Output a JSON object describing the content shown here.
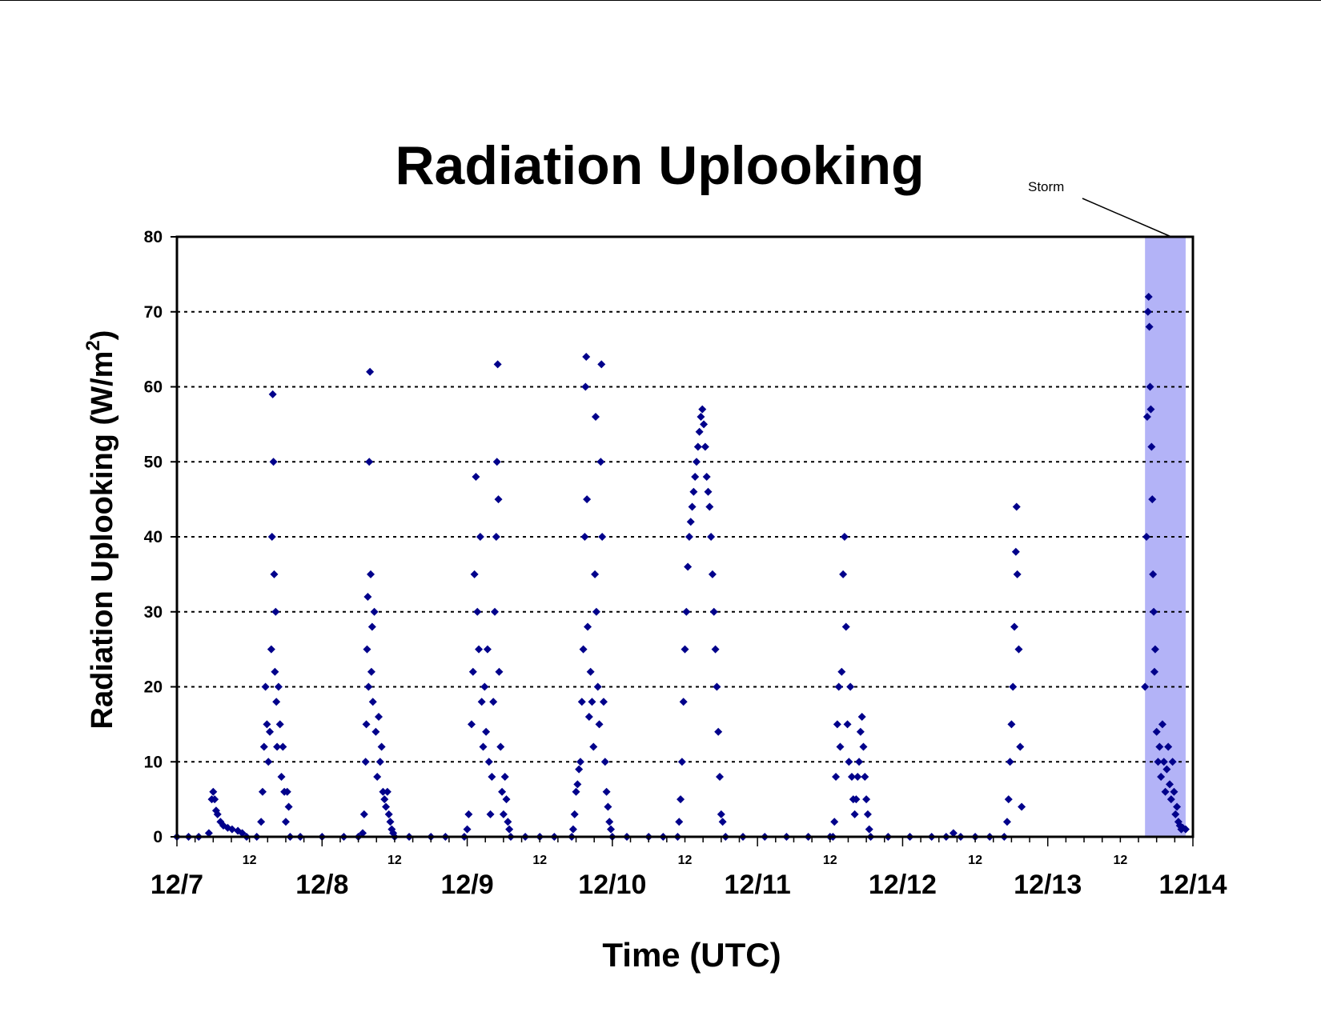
{
  "chart_data": {
    "type": "scatter",
    "title": "Radiation Uplooking",
    "xlabel": "Time (UTC)",
    "ylabel_main": "Radiation Uplooking (W/m",
    "ylabel_sup": "2",
    "ylabel_close": ")",
    "ylim": [
      0,
      80
    ],
    "yticks": [
      0,
      10,
      20,
      30,
      40,
      50,
      60,
      70,
      80
    ],
    "xlim_days": [
      0,
      7
    ],
    "x_major_labels": [
      "12/7",
      "12/8",
      "12/9",
      "12/10",
      "12/11",
      "12/12",
      "12/13",
      "12/14"
    ],
    "x_minor_label": "12",
    "grid": "horizontal dotted",
    "marker_color": "#00008B",
    "marker": "diamond",
    "annotation": {
      "label": "Storm",
      "x_start_day": 6.67,
      "x_end_day": 6.95,
      "fill": "#B3B3F7"
    },
    "series": [
      {
        "points": [
          [
            0.0,
            0
          ],
          [
            0.08,
            0
          ],
          [
            0.15,
            0
          ],
          [
            0.22,
            0.5
          ],
          [
            0.24,
            5
          ],
          [
            0.25,
            6
          ],
          [
            0.26,
            5
          ],
          [
            0.27,
            3.5
          ],
          [
            0.28,
            3
          ],
          [
            0.3,
            2
          ],
          [
            0.32,
            1.5
          ],
          [
            0.35,
            1.2
          ],
          [
            0.38,
            1
          ],
          [
            0.42,
            0.8
          ],
          [
            0.45,
            0.5
          ],
          [
            0.48,
            0
          ],
          [
            0.55,
            0
          ],
          [
            0.58,
            2
          ],
          [
            0.59,
            6
          ],
          [
            0.6,
            12
          ],
          [
            0.61,
            20
          ],
          [
            0.62,
            15
          ],
          [
            0.63,
            10
          ],
          [
            0.64,
            14
          ],
          [
            0.65,
            25
          ],
          [
            0.655,
            40
          ],
          [
            0.66,
            59
          ],
          [
            0.665,
            50
          ],
          [
            0.67,
            35
          ],
          [
            0.675,
            22
          ],
          [
            0.68,
            30
          ],
          [
            0.685,
            18
          ],
          [
            0.69,
            12
          ],
          [
            0.7,
            20
          ],
          [
            0.71,
            15
          ],
          [
            0.72,
            8
          ],
          [
            0.73,
            12
          ],
          [
            0.74,
            6
          ],
          [
            0.75,
            2
          ],
          [
            0.76,
            6
          ],
          [
            0.77,
            4
          ],
          [
            0.78,
            0
          ],
          [
            0.85,
            0
          ],
          [
            1.0,
            0
          ],
          [
            1.15,
            0
          ],
          [
            1.25,
            0
          ],
          [
            1.28,
            0.5
          ],
          [
            1.29,
            3
          ],
          [
            1.3,
            10
          ],
          [
            1.305,
            15
          ],
          [
            1.31,
            25
          ],
          [
            1.315,
            32
          ],
          [
            1.32,
            20
          ],
          [
            1.325,
            50
          ],
          [
            1.33,
            62
          ],
          [
            1.335,
            35
          ],
          [
            1.34,
            22
          ],
          [
            1.345,
            28
          ],
          [
            1.35,
            18
          ],
          [
            1.36,
            30
          ],
          [
            1.37,
            14
          ],
          [
            1.38,
            8
          ],
          [
            1.39,
            16
          ],
          [
            1.4,
            10
          ],
          [
            1.41,
            12
          ],
          [
            1.42,
            6
          ],
          [
            1.43,
            5
          ],
          [
            1.44,
            4
          ],
          [
            1.45,
            6
          ],
          [
            1.46,
            3
          ],
          [
            1.47,
            2
          ],
          [
            1.48,
            1
          ],
          [
            1.49,
            0.5
          ],
          [
            1.5,
            0
          ],
          [
            1.6,
            0
          ],
          [
            1.75,
            0
          ],
          [
            1.85,
            0
          ],
          [
            1.98,
            0
          ],
          [
            2.0,
            1
          ],
          [
            2.01,
            3
          ],
          [
            2.03,
            15
          ],
          [
            2.04,
            22
          ],
          [
            2.05,
            35
          ],
          [
            2.06,
            48
          ],
          [
            2.07,
            30
          ],
          [
            2.08,
            25
          ],
          [
            2.09,
            40
          ],
          [
            2.1,
            18
          ],
          [
            2.11,
            12
          ],
          [
            2.12,
            20
          ],
          [
            2.13,
            14
          ],
          [
            2.14,
            25
          ],
          [
            2.15,
            10
          ],
          [
            2.16,
            3
          ],
          [
            2.17,
            8
          ],
          [
            2.18,
            18
          ],
          [
            2.19,
            30
          ],
          [
            2.2,
            40
          ],
          [
            2.205,
            50
          ],
          [
            2.21,
            63
          ],
          [
            2.215,
            45
          ],
          [
            2.22,
            22
          ],
          [
            2.23,
            12
          ],
          [
            2.24,
            6
          ],
          [
            2.25,
            3
          ],
          [
            2.26,
            8
          ],
          [
            2.27,
            5
          ],
          [
            2.28,
            2
          ],
          [
            2.29,
            1
          ],
          [
            2.3,
            0
          ],
          [
            2.4,
            0
          ],
          [
            2.5,
            0
          ],
          [
            2.6,
            0
          ],
          [
            2.72,
            0
          ],
          [
            2.73,
            1
          ],
          [
            2.74,
            3
          ],
          [
            2.75,
            6
          ],
          [
            2.76,
            7
          ],
          [
            2.77,
            9
          ],
          [
            2.78,
            10
          ],
          [
            2.79,
            18
          ],
          [
            2.8,
            25
          ],
          [
            2.81,
            40
          ],
          [
            2.815,
            60
          ],
          [
            2.82,
            64
          ],
          [
            2.825,
            45
          ],
          [
            2.83,
            28
          ],
          [
            2.84,
            16
          ],
          [
            2.85,
            22
          ],
          [
            2.86,
            18
          ],
          [
            2.87,
            12
          ],
          [
            2.88,
            35
          ],
          [
            2.885,
            56
          ],
          [
            2.89,
            30
          ],
          [
            2.9,
            20
          ],
          [
            2.91,
            15
          ],
          [
            2.92,
            50
          ],
          [
            2.925,
            63
          ],
          [
            2.93,
            40
          ],
          [
            2.94,
            18
          ],
          [
            2.95,
            10
          ],
          [
            2.96,
            6
          ],
          [
            2.97,
            4
          ],
          [
            2.98,
            2
          ],
          [
            2.99,
            1
          ],
          [
            3.0,
            0
          ],
          [
            3.1,
            0
          ],
          [
            3.25,
            0
          ],
          [
            3.35,
            0
          ],
          [
            3.45,
            0
          ],
          [
            3.46,
            2
          ],
          [
            3.47,
            5
          ],
          [
            3.48,
            10
          ],
          [
            3.49,
            18
          ],
          [
            3.5,
            25
          ],
          [
            3.51,
            30
          ],
          [
            3.52,
            36
          ],
          [
            3.53,
            40
          ],
          [
            3.54,
            42
          ],
          [
            3.55,
            44
          ],
          [
            3.56,
            46
          ],
          [
            3.57,
            48
          ],
          [
            3.58,
            50
          ],
          [
            3.59,
            52
          ],
          [
            3.6,
            54
          ],
          [
            3.61,
            56
          ],
          [
            3.62,
            57
          ],
          [
            3.63,
            55
          ],
          [
            3.64,
            52
          ],
          [
            3.65,
            48
          ],
          [
            3.66,
            46
          ],
          [
            3.67,
            44
          ],
          [
            3.68,
            40
          ],
          [
            3.69,
            35
          ],
          [
            3.7,
            30
          ],
          [
            3.71,
            25
          ],
          [
            3.72,
            20
          ],
          [
            3.73,
            14
          ],
          [
            3.74,
            8
          ],
          [
            3.75,
            3
          ],
          [
            3.76,
            2
          ],
          [
            3.78,
            0
          ],
          [
            3.9,
            0
          ],
          [
            4.05,
            0
          ],
          [
            4.2,
            0
          ],
          [
            4.35,
            0
          ],
          [
            4.5,
            0
          ],
          [
            4.52,
            0
          ],
          [
            4.53,
            2
          ],
          [
            4.54,
            8
          ],
          [
            4.55,
            15
          ],
          [
            4.56,
            20
          ],
          [
            4.57,
            12
          ],
          [
            4.58,
            22
          ],
          [
            4.59,
            35
          ],
          [
            4.6,
            40
          ],
          [
            4.61,
            28
          ],
          [
            4.62,
            15
          ],
          [
            4.63,
            10
          ],
          [
            4.64,
            20
          ],
          [
            4.65,
            8
          ],
          [
            4.66,
            5
          ],
          [
            4.67,
            3
          ],
          [
            4.68,
            5
          ],
          [
            4.69,
            8
          ],
          [
            4.7,
            10
          ],
          [
            4.71,
            14
          ],
          [
            4.72,
            16
          ],
          [
            4.73,
            12
          ],
          [
            4.74,
            8
          ],
          [
            4.75,
            5
          ],
          [
            4.76,
            3
          ],
          [
            4.77,
            1
          ],
          [
            4.78,
            0
          ],
          [
            4.9,
            0
          ],
          [
            5.05,
            0
          ],
          [
            5.2,
            0
          ],
          [
            5.3,
            0
          ],
          [
            5.35,
            0.5
          ],
          [
            5.4,
            0
          ],
          [
            5.5,
            0
          ],
          [
            5.6,
            0
          ],
          [
            5.7,
            0
          ],
          [
            5.72,
            2
          ],
          [
            5.73,
            5
          ],
          [
            5.74,
            10
          ],
          [
            5.75,
            15
          ],
          [
            5.76,
            20
          ],
          [
            5.77,
            28
          ],
          [
            5.78,
            38
          ],
          [
            5.785,
            44
          ],
          [
            5.79,
            35
          ],
          [
            5.8,
            25
          ],
          [
            5.81,
            12
          ],
          [
            5.82,
            4
          ]
        ]
      },
      {
        "points": [
          [
            6.67,
            20
          ],
          [
            6.68,
            40
          ],
          [
            6.685,
            56
          ],
          [
            6.69,
            70
          ],
          [
            6.695,
            72
          ],
          [
            6.7,
            68
          ],
          [
            6.705,
            60
          ],
          [
            6.71,
            57
          ],
          [
            6.715,
            52
          ],
          [
            6.72,
            45
          ],
          [
            6.725,
            35
          ],
          [
            6.73,
            30
          ],
          [
            6.735,
            22
          ],
          [
            6.74,
            25
          ],
          [
            6.75,
            14
          ],
          [
            6.76,
            10
          ],
          [
            6.77,
            12
          ],
          [
            6.78,
            8
          ],
          [
            6.79,
            15
          ],
          [
            6.8,
            10
          ],
          [
            6.81,
            6
          ],
          [
            6.82,
            9
          ],
          [
            6.83,
            12
          ],
          [
            6.84,
            7
          ],
          [
            6.85,
            5
          ],
          [
            6.86,
            10
          ],
          [
            6.87,
            6
          ],
          [
            6.88,
            3
          ],
          [
            6.89,
            4
          ],
          [
            6.9,
            2
          ],
          [
            6.91,
            1.5
          ],
          [
            6.92,
            1
          ],
          [
            6.93,
            1.2
          ],
          [
            6.95,
            1
          ]
        ]
      }
    ]
  }
}
